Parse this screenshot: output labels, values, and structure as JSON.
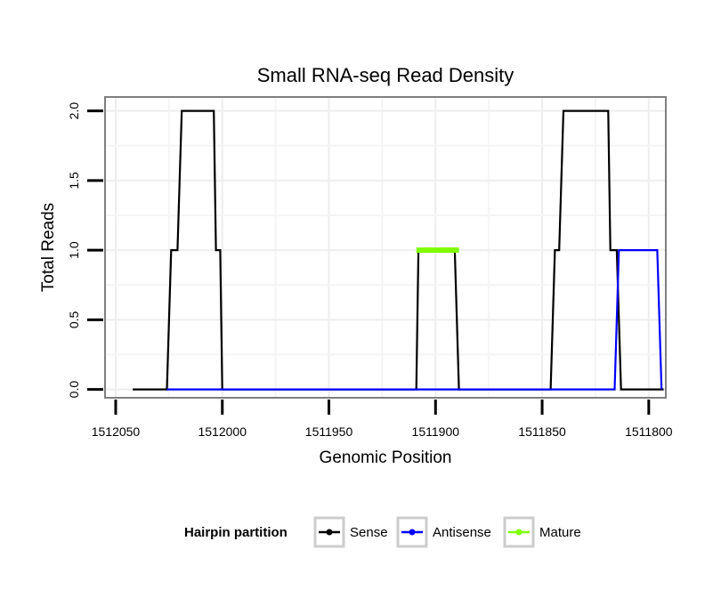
{
  "chart_data": {
    "type": "line",
    "title": "Small RNA-seq Read Density",
    "xlabel": "Genomic Position",
    "ylabel": "Total Reads",
    "x_reversed": true,
    "xlim": [
      1512055,
      1511792
    ],
    "ylim": [
      -0.06,
      2.1
    ],
    "x_ticks": [
      1512050,
      1512000,
      1511950,
      1511900,
      1511850,
      1511800
    ],
    "x_tick_labels": [
      "1512050",
      "1512000",
      "1511950",
      "1511900",
      "1511850",
      "1511800"
    ],
    "y_ticks": [
      0,
      0.5,
      1,
      1.5,
      2
    ],
    "y_tick_labels": [
      "0.0",
      "0.5",
      "1.0",
      "1.5",
      "2.0"
    ],
    "grid": true,
    "legend": {
      "title": "Hairpin partition",
      "position": "bottom",
      "entries": [
        "Sense",
        "Antisense",
        "Mature"
      ]
    },
    "series": [
      {
        "name": "Sense",
        "color": "#000000",
        "points": [
          [
            1512042,
            0
          ],
          [
            1512026,
            0
          ],
          [
            1512024,
            1
          ],
          [
            1512021,
            1
          ],
          [
            1512019,
            2
          ],
          [
            1512004,
            2
          ],
          [
            1512003,
            1
          ],
          [
            1512001,
            1
          ],
          [
            1512000,
            0
          ],
          [
            1511909,
            0
          ],
          [
            1511908,
            1
          ],
          [
            1511891,
            1
          ],
          [
            1511889,
            0
          ],
          [
            1511846,
            0
          ],
          [
            1511844,
            1
          ],
          [
            1511842,
            1
          ],
          [
            1511840,
            2
          ],
          [
            1511819,
            2
          ],
          [
            1511818,
            1
          ],
          [
            1511815,
            1
          ],
          [
            1511813,
            0
          ],
          [
            1511793,
            0
          ]
        ]
      },
      {
        "name": "Antisense",
        "color": "#0000ff",
        "points": [
          [
            1512026,
            0
          ],
          [
            1511816,
            0
          ],
          [
            1511814,
            1
          ],
          [
            1511796,
            1
          ],
          [
            1511794,
            0
          ]
        ]
      },
      {
        "name": "Mature",
        "color": "#7fff00",
        "points": [
          [
            1511909,
            1
          ],
          [
            1511889,
            1
          ]
        ]
      }
    ]
  }
}
